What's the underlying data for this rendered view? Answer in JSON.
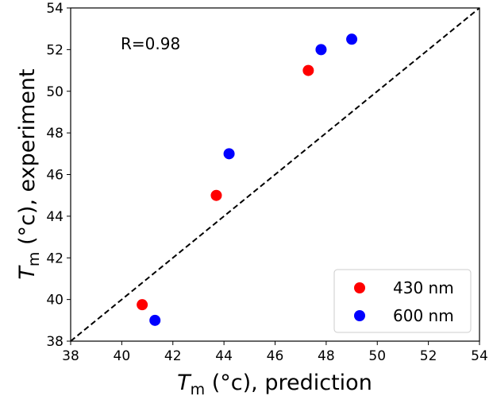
{
  "chart_data": {
    "type": "scatter",
    "xlim": [
      38,
      54
    ],
    "ylim": [
      38,
      54
    ],
    "xticks": [
      "38",
      "40",
      "42",
      "44",
      "46",
      "48",
      "50",
      "52",
      "54"
    ],
    "yticks": [
      "38",
      "40",
      "42",
      "44",
      "46",
      "48",
      "50",
      "52",
      "54"
    ],
    "xlabel": {
      "symbol": "T",
      "subscript": "m",
      "rest": " (°c), prediction"
    },
    "ylabel": {
      "symbol": "T",
      "subscript": "m",
      "rest": " (°c), experiment"
    },
    "annotation": "R=0.98",
    "reference_line": {
      "style": "dashed",
      "from": [
        38,
        38
      ],
      "to": [
        54,
        54
      ],
      "color": "#000000"
    },
    "grid": false,
    "legend_position": "bottom-right",
    "series": [
      {
        "name": "430 nm",
        "color": "#ff0000",
        "points": [
          [
            40.8,
            39.75
          ],
          [
            43.7,
            45.0
          ],
          [
            47.3,
            51.0
          ]
        ]
      },
      {
        "name": "600 nm",
        "color": "#0000ff",
        "points": [
          [
            41.3,
            39.0
          ],
          [
            44.2,
            47.0
          ],
          [
            47.8,
            52.0
          ],
          [
            49.0,
            52.5
          ]
        ]
      }
    ]
  }
}
